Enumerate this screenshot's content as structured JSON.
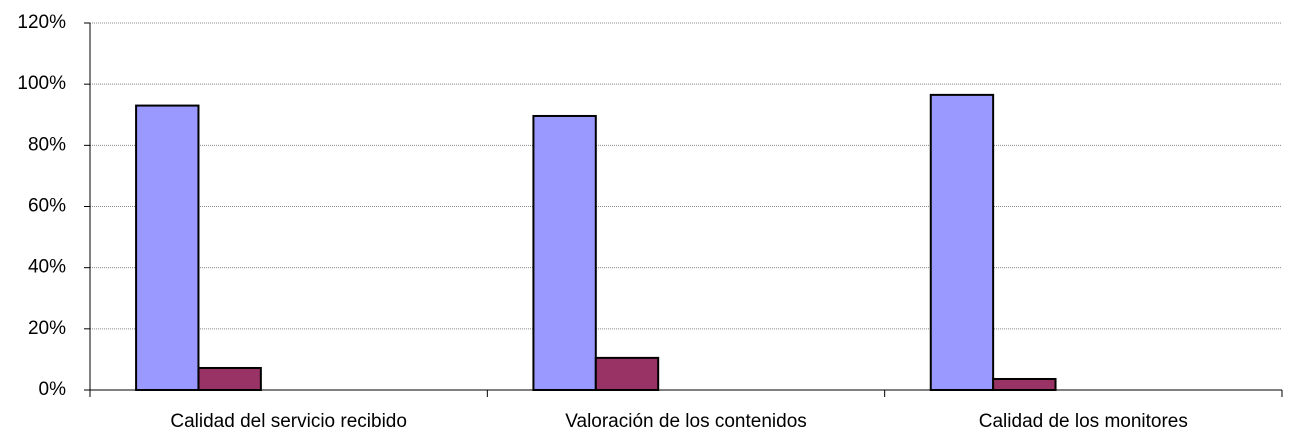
{
  "chart_data": {
    "type": "bar",
    "categories": [
      "Calidad del servicio recibido",
      "Valoración de los contenidos",
      "Calidad de los monitores"
    ],
    "series": [
      {
        "color": "#9999ff",
        "values": [
          93,
          89.6,
          96.5
        ]
      },
      {
        "color": "#993366",
        "values": [
          7.2,
          10.5,
          3.6
        ]
      }
    ],
    "ylim": [
      0,
      120
    ],
    "yticks": [
      {
        "value": 0,
        "label": "0%"
      },
      {
        "value": 20,
        "label": "20%"
      },
      {
        "value": 40,
        "label": "40%"
      },
      {
        "value": 60,
        "label": "60%"
      },
      {
        "value": 80,
        "label": "80%"
      },
      {
        "value": 100,
        "label": "100%"
      },
      {
        "value": 120,
        "label": "120%"
      }
    ],
    "grid": true
  }
}
